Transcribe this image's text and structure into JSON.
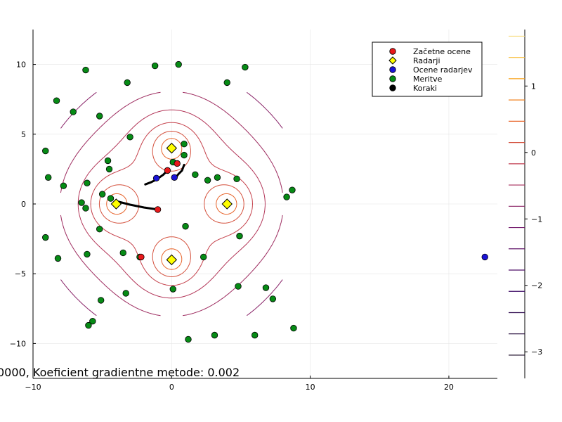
{
  "chart_data": {
    "type": "scatter",
    "xlim": [
      -10,
      23.5
    ],
    "ylim": [
      -12.5,
      12.5
    ],
    "x_ticks": [
      -10,
      0,
      10,
      20
    ],
    "y_ticks": [
      -10,
      -5,
      0,
      5,
      10
    ],
    "grid": true,
    "legend_position": "top-right",
    "annotation": "0000, Koeficient gradientne metode: 0.002",
    "legend": [
      {
        "label": "Začetne ocene",
        "color": "#e8191b",
        "marker": "circle"
      },
      {
        "label": "Radarji",
        "color": "#ffff00",
        "marker": "diamond"
      },
      {
        "label": "Ocene radarjev",
        "color": "#1a13d6",
        "marker": "circle"
      },
      {
        "label": "Meritve",
        "color": "#068b15",
        "marker": "circle"
      },
      {
        "label": "Koraki",
        "color": "#000000",
        "marker": "circle"
      }
    ],
    "series": [
      {
        "name": "Začetne ocene",
        "points": [
          [
            -1,
            -0.4
          ],
          [
            -2.2,
            -3.8
          ],
          [
            -0.3,
            2.4
          ],
          [
            0.4,
            2.9
          ]
        ]
      },
      {
        "name": "Radarji",
        "points": [
          [
            0,
            4
          ],
          [
            -4,
            0
          ],
          [
            4,
            0
          ],
          [
            0,
            -4
          ]
        ]
      },
      {
        "name": "Ocene radarjev",
        "points": [
          [
            -4,
            0.05
          ],
          [
            -1.1,
            1.85
          ],
          [
            0.2,
            1.9
          ],
          [
            22.6,
            -3.8
          ]
        ]
      },
      {
        "name": "Meritve",
        "points": [
          [
            -6.2,
            9.6
          ],
          [
            -1.2,
            9.9
          ],
          [
            0.5,
            10
          ],
          [
            5.3,
            9.8
          ],
          [
            4,
            8.7
          ],
          [
            -3.2,
            8.7
          ],
          [
            -8.3,
            7.4
          ],
          [
            -7.1,
            6.6
          ],
          [
            -5.2,
            6.3
          ],
          [
            -3,
            4.8
          ],
          [
            -9.1,
            3.8
          ],
          [
            -4.6,
            3.1
          ],
          [
            -4.5,
            2.5
          ],
          [
            0.1,
            3
          ],
          [
            0.9,
            4.3
          ],
          [
            0.9,
            3.5
          ],
          [
            1.7,
            2.1
          ],
          [
            2.6,
            1.7
          ],
          [
            3.3,
            1.9
          ],
          [
            4.7,
            1.8
          ],
          [
            -8.9,
            1.9
          ],
          [
            -7.8,
            1.3
          ],
          [
            -6.1,
            1.5
          ],
          [
            -5,
            0.7
          ],
          [
            -4.4,
            0.4
          ],
          [
            -6.5,
            0.1
          ],
          [
            -6.2,
            -0.3
          ],
          [
            8.7,
            1
          ],
          [
            8.3,
            0.5
          ],
          [
            1,
            -1.6
          ],
          [
            -5.2,
            -1.8
          ],
          [
            4.9,
            -2.3
          ],
          [
            -9.1,
            -2.4
          ],
          [
            -6.1,
            -3.6
          ],
          [
            -3.5,
            -3.5
          ],
          [
            -2.3,
            -3.8
          ],
          [
            2.3,
            -3.8
          ],
          [
            -8.2,
            -3.9
          ],
          [
            0.1,
            -6.1
          ],
          [
            4.8,
            -5.9
          ],
          [
            6.8,
            -6
          ],
          [
            7.3,
            -6.8
          ],
          [
            -3.3,
            -6.4
          ],
          [
            -5.1,
            -6.9
          ],
          [
            -5.7,
            -8.4
          ],
          [
            -6,
            -8.7
          ],
          [
            8.8,
            -8.9
          ],
          [
            3.1,
            -9.4
          ],
          [
            6,
            -9.4
          ],
          [
            1.2,
            -9.7
          ]
        ]
      }
    ],
    "steps_paths": [
      [
        [
          -4,
          0.2
        ],
        [
          -3,
          -0.05
        ],
        [
          -2,
          -0.25
        ],
        [
          -1,
          -0.4
        ]
      ],
      [
        [
          -1.9,
          1.4
        ],
        [
          -1.5,
          1.55
        ],
        [
          -1.1,
          1.75
        ],
        [
          -0.6,
          2.1
        ],
        [
          -0.3,
          2.4
        ]
      ],
      [
        [
          0.9,
          2.8
        ],
        [
          0.75,
          2.4
        ],
        [
          0.5,
          2.15
        ],
        [
          0.3,
          1.9
        ]
      ]
    ],
    "contour": {
      "peaks": [
        [
          0,
          4
        ],
        [
          -4,
          0
        ],
        [
          4,
          0
        ],
        [
          0,
          -4
        ]
      ],
      "levels": [
        -3.2,
        -2.85,
        -2.5,
        -2.2,
        -1.9,
        -1.6,
        -1.35,
        -1.1,
        -0.85,
        -0.6,
        -0.35,
        -0.1,
        0.15,
        0.45,
        0.8,
        1.1,
        1.45,
        1.75
      ],
      "colorbar_ticks": [
        -3,
        -2,
        -1,
        0,
        1
      ],
      "colorbar_range": [
        -3.4,
        1.85
      ]
    }
  }
}
